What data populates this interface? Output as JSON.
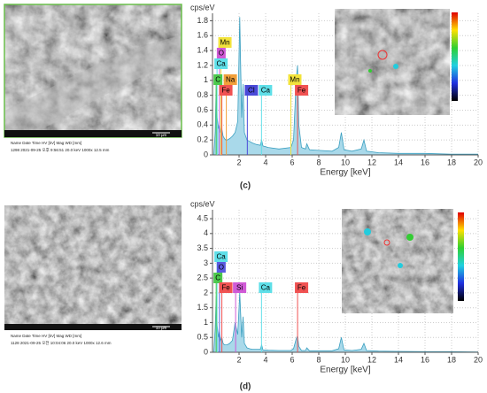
{
  "figure": {
    "panels": [
      {
        "label": "(c)",
        "sem_info": {
          "header": "Name   Date        Time          HV [kV]    Mag     WD [mm]",
          "values": "1298   2021-09-25   오후 9:56:51   20.0 keV   1000x   12.5 mm"
        },
        "scale_bar": "10 µm"
      },
      {
        "label": "(d)",
        "sem_info": {
          "header": "Name   Date        Time          HV [kV]    Mag     WD [mm]",
          "values": "1128   2021-09-25   오전 10:04:06   20.0 keV   1000x   12.6 mm"
        },
        "scale_bar": "10 µm"
      }
    ]
  },
  "chart_data": [
    {
      "type": "line",
      "y_label": "cps/eV",
      "x_label": "Energy [keV]",
      "fill": "#a9d9ea",
      "color": "#3a9fc0",
      "grid": true,
      "xlim": [
        0,
        20
      ],
      "xticks": [
        2,
        4,
        6,
        8,
        10,
        12,
        14,
        16,
        18,
        20
      ],
      "ylim": [
        0,
        1.9
      ],
      "yticks": [
        0,
        0.2,
        0.4,
        0.6,
        0.8,
        1.0,
        1.2,
        1.4,
        1.6,
        1.8
      ],
      "x": [
        0.1,
        0.2,
        0.28,
        0.35,
        0.45,
        0.52,
        0.6,
        0.7,
        0.8,
        0.9,
        1.0,
        1.1,
        1.3,
        1.5,
        1.7,
        1.9,
        2.05,
        2.12,
        2.2,
        2.3,
        2.4,
        2.6,
        2.8,
        3.0,
        3.3,
        3.6,
        3.7,
        3.8,
        4.2,
        5.0,
        5.9,
        6.1,
        6.3,
        6.4,
        6.5,
        6.7,
        7.0,
        7.1,
        7.3,
        8.0,
        9.0,
        9.5,
        9.7,
        9.9,
        10.5,
        11.2,
        11.4,
        11.6,
        12.5,
        14,
        16,
        18,
        20
      ],
      "series": [
        {
          "values": [
            0,
            0.3,
            0.95,
            0.5,
            0.35,
            0.4,
            0.3,
            0.35,
            0.25,
            0.22,
            0.2,
            0.2,
            0.22,
            0.25,
            0.3,
            0.45,
            1.85,
            1.2,
            0.5,
            0.95,
            0.3,
            0.2,
            0.18,
            0.16,
            0.14,
            0.13,
            0.2,
            0.12,
            0.1,
            0.08,
            0.1,
            0.2,
            1.0,
            1.2,
            0.4,
            0.1,
            0.08,
            0.15,
            0.07,
            0.06,
            0.05,
            0.1,
            0.3,
            0.07,
            0.05,
            0.08,
            0.2,
            0.05,
            0.03,
            0.02,
            0.02,
            0.01,
            0.01
          ]
        }
      ],
      "markers": [
        {
          "label": "Mn",
          "x": 0.637,
          "color": "#f2e33c"
        },
        {
          "label": "O",
          "x": 0.525,
          "color": "#cf5ad6"
        },
        {
          "label": "Ca",
          "x": 0.341,
          "color": "#5fdfe8"
        },
        {
          "label": "C",
          "x": 0.277,
          "color": "#4cc94c"
        },
        {
          "label": "Na",
          "x": 1.041,
          "color": "#f2a03a"
        },
        {
          "label": "Fe",
          "x": 0.705,
          "color": "#f05252"
        },
        {
          "label": "Cl",
          "x": 2.622,
          "color": "#4a4ad8"
        },
        {
          "label": "Ca",
          "x": 3.69,
          "color": "#5fdfe8"
        },
        {
          "label": "Mn",
          "x": 5.899,
          "color": "#f2e33c"
        },
        {
          "label": "Fe",
          "x": 6.404,
          "color": "#f05252"
        }
      ]
    },
    {
      "type": "line",
      "y_label": "cps/eV",
      "x_label": "Energy [keV]",
      "fill": "#a9d9ea",
      "color": "#3a9fc0",
      "grid": true,
      "xlim": [
        0,
        20
      ],
      "xticks": [
        2,
        4,
        6,
        8,
        10,
        12,
        14,
        16,
        18,
        20
      ],
      "ylim": [
        0,
        4.8
      ],
      "yticks": [
        0,
        0.5,
        1.0,
        1.5,
        2.0,
        2.5,
        3.0,
        3.5,
        4.0,
        4.5
      ],
      "x": [
        0.1,
        0.2,
        0.28,
        0.35,
        0.45,
        0.52,
        0.6,
        0.7,
        0.8,
        0.9,
        1.0,
        1.1,
        1.3,
        1.5,
        1.7,
        1.9,
        2.05,
        2.12,
        2.2,
        2.3,
        2.4,
        2.6,
        2.8,
        3.0,
        3.3,
        3.6,
        3.7,
        3.8,
        4.2,
        5.0,
        5.9,
        6.1,
        6.3,
        6.4,
        6.5,
        6.7,
        7.0,
        7.1,
        7.3,
        8.0,
        9.0,
        9.5,
        9.7,
        9.9,
        10.5,
        11.2,
        11.4,
        11.6,
        12.5,
        14,
        16,
        18,
        20
      ],
      "series": [
        {
          "values": [
            0,
            0.8,
            1.9,
            0.9,
            0.5,
            0.7,
            0.4,
            0.5,
            0.3,
            0.25,
            0.25,
            0.25,
            0.3,
            0.4,
            1.0,
            0.6,
            2.0,
            1.3,
            0.5,
            1.2,
            0.3,
            0.15,
            0.12,
            0.1,
            0.1,
            0.1,
            0.25,
            0.08,
            0.07,
            0.06,
            0.06,
            0.12,
            0.45,
            0.55,
            0.2,
            0.06,
            0.06,
            0.15,
            0.05,
            0.05,
            0.05,
            0.12,
            0.5,
            0.08,
            0.06,
            0.1,
            0.3,
            0.06,
            0.04,
            0.03,
            0.02,
            0.02,
            0.01
          ]
        }
      ],
      "markers": [
        {
          "label": "Ca",
          "x": 0.341,
          "color": "#5fdfe8"
        },
        {
          "label": "O",
          "x": 0.525,
          "color": "#5a5ae0"
        },
        {
          "label": "C",
          "x": 0.277,
          "color": "#4cc94c"
        },
        {
          "label": "Fe",
          "x": 0.705,
          "color": "#f05252"
        },
        {
          "label": "Si",
          "x": 1.74,
          "color": "#d05ad6"
        },
        {
          "label": "Ca",
          "x": 3.69,
          "color": "#5fdfe8"
        },
        {
          "label": "Fe",
          "x": 6.404,
          "color": "#f05252"
        }
      ]
    }
  ]
}
